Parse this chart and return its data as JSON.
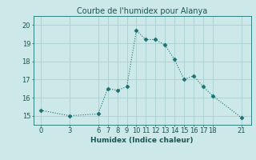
{
  "x": [
    0,
    3,
    6,
    7,
    8,
    9,
    10,
    11,
    12,
    13,
    14,
    15,
    16,
    17,
    18,
    21
  ],
  "y": [
    15.3,
    15.0,
    15.1,
    16.5,
    16.4,
    16.6,
    19.7,
    19.2,
    19.2,
    18.9,
    18.1,
    17.0,
    17.2,
    16.6,
    16.1,
    14.9
  ],
  "xticks": [
    0,
    3,
    6,
    7,
    8,
    9,
    10,
    11,
    12,
    13,
    14,
    15,
    16,
    17,
    18,
    21
  ],
  "yticks": [
    15,
    16,
    17,
    18,
    19,
    20
  ],
  "ylim": [
    14.5,
    20.5
  ],
  "xlim": [
    -0.8,
    22.0
  ],
  "xlabel": "Humidex (Indice chaleur)",
  "title": "Courbe de l'humidex pour Alanya",
  "line_color": "#1a7070",
  "marker": "D",
  "marker_size": 2.5,
  "bg_color": "#cce8e8",
  "grid_color": "#aad0d0",
  "font_color": "#1a5555",
  "title_fontsize": 7,
  "label_fontsize": 6.5,
  "tick_fontsize": 6
}
